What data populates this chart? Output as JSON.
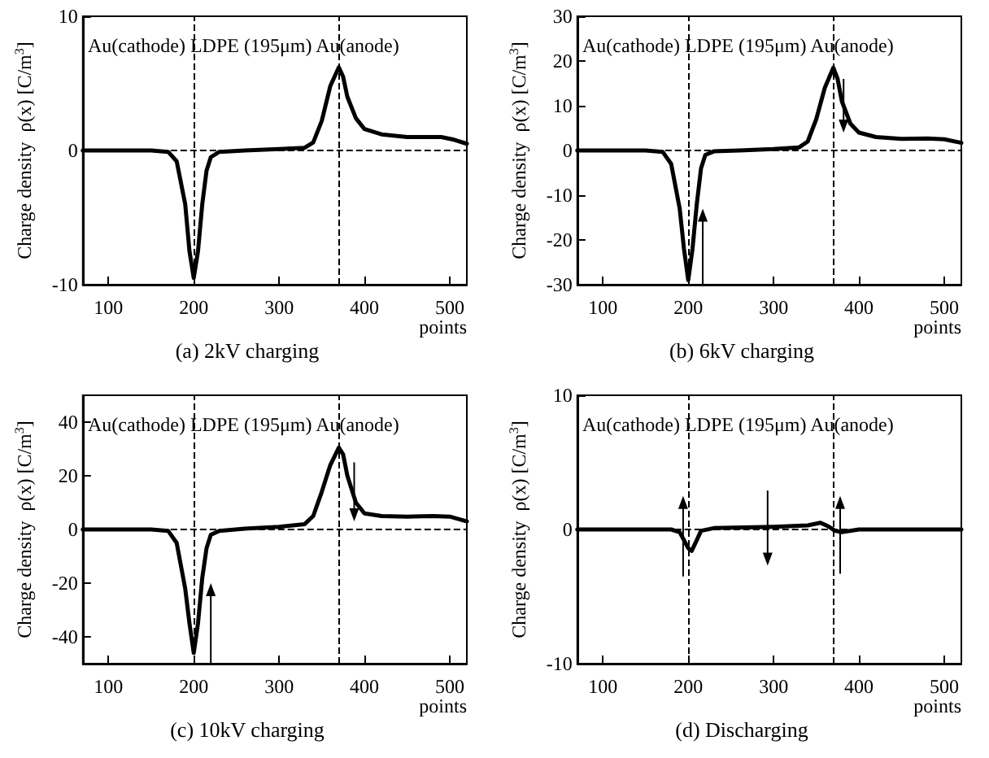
{
  "chart_data": [
    {
      "type": "line",
      "title": "(a) 2kV charging",
      "xlabel": "points",
      "ylabel": "Charge density  ρ(x) [C/m$^{3}$]",
      "annotations": [
        "Au(cathode) LDPE (195μm) Au(anode)"
      ],
      "xlim": [
        70,
        520
      ],
      "xticks": [
        100,
        200,
        300,
        400,
        500
      ],
      "ylim": [
        -10,
        10
      ],
      "yticks": [
        -10,
        0,
        10
      ],
      "marker": "none",
      "line_style": "solid",
      "grid": false,
      "legend": false,
      "ref_lines": [
        {
          "axis": "x",
          "value": 200,
          "color": "#000000",
          "line_style": "dashed"
        },
        {
          "axis": "x",
          "value": 370,
          "color": "#000000",
          "line_style": "dashed"
        },
        {
          "axis": "y",
          "value": 0,
          "color": "#000000",
          "line_style": "dashed"
        }
      ],
      "series": [
        {
          "color": "#000000",
          "x": [
            70,
            150,
            170,
            180,
            190,
            195,
            200,
            205,
            210,
            215,
            220,
            230,
            260,
            300,
            330,
            340,
            350,
            360,
            370,
            375,
            380,
            390,
            400,
            420,
            450,
            490,
            505,
            520
          ],
          "values": [
            0,
            0,
            -0.1,
            -0.8,
            -4,
            -7.5,
            -9.5,
            -7.5,
            -4,
            -1.5,
            -0.5,
            -0.1,
            0,
            0.1,
            0.2,
            0.6,
            2.2,
            4.8,
            6.2,
            5.5,
            4,
            2.4,
            1.6,
            1.2,
            1,
            1,
            0.8,
            0.5
          ]
        }
      ]
    },
    {
      "type": "line",
      "title": "(b) 6kV charging",
      "xlabel": "points",
      "ylabel": "Charge density  ρ(x) [C/m$^{3}$]",
      "annotations": [
        "Au(cathode) LDPE (195μm) Au(anode)"
      ],
      "xlim": [
        70,
        520
      ],
      "xticks": [
        100,
        200,
        300,
        400,
        500
      ],
      "ylim": [
        -30,
        30
      ],
      "yticks": [
        -30,
        -20,
        -10,
        0,
        10,
        20,
        30
      ],
      "marker": "none",
      "line_style": "solid",
      "grid": false,
      "legend": false,
      "ref_lines": [
        {
          "axis": "x",
          "value": 200,
          "color": "#000000",
          "line_style": "dashed"
        },
        {
          "axis": "x",
          "value": 370,
          "color": "#000000",
          "line_style": "dashed"
        },
        {
          "axis": "y",
          "value": 0,
          "color": "#000000",
          "line_style": "dashed"
        }
      ],
      "series": [
        {
          "color": "#000000",
          "x": [
            70,
            150,
            170,
            180,
            190,
            195,
            200,
            205,
            210,
            215,
            220,
            230,
            260,
            300,
            330,
            340,
            350,
            360,
            370,
            375,
            380,
            390,
            400,
            420,
            450,
            480,
            500,
            520
          ],
          "values": [
            0,
            0,
            -0.3,
            -3,
            -13,
            -22,
            -29,
            -22,
            -12,
            -4,
            -1,
            -0.2,
            0,
            0.3,
            0.7,
            2,
            7,
            14,
            18.5,
            16,
            11,
            6,
            4,
            3,
            2.6,
            2.7,
            2.5,
            1.7
          ]
        }
      ]
    },
    {
      "type": "line",
      "title": "(c) 10kV charging",
      "xlabel": "points",
      "ylabel": "Charge density  ρ(x) [C/m$^{3}$]",
      "annotations": [
        "Au(cathode) LDPE (195μm) Au(anode)"
      ],
      "xlim": [
        70,
        520
      ],
      "xticks": [
        100,
        200,
        300,
        400,
        500
      ],
      "ylim": [
        -50,
        50
      ],
      "yticks": [
        -40,
        -20,
        0,
        20,
        40
      ],
      "marker": "none",
      "line_style": "solid",
      "grid": false,
      "legend": false,
      "ref_lines": [
        {
          "axis": "x",
          "value": 200,
          "color": "#000000",
          "line_style": "dashed"
        },
        {
          "axis": "x",
          "value": 370,
          "color": "#000000",
          "line_style": "dashed"
        },
        {
          "axis": "y",
          "value": 0,
          "color": "#000000",
          "line_style": "dashed"
        }
      ],
      "series": [
        {
          "color": "#000000",
          "x": [
            70,
            150,
            170,
            180,
            190,
            195,
            200,
            205,
            210,
            215,
            220,
            230,
            260,
            300,
            330,
            340,
            350,
            360,
            370,
            375,
            380,
            390,
            400,
            420,
            450,
            480,
            500,
            520
          ],
          "values": [
            0,
            0,
            -0.5,
            -5,
            -22,
            -35,
            -46,
            -35,
            -18,
            -7,
            -2,
            -0.5,
            0.3,
            1,
            2,
            5,
            14,
            24,
            30.5,
            28,
            20,
            10,
            6,
            5,
            4.8,
            5,
            4.8,
            3
          ]
        }
      ]
    },
    {
      "type": "line",
      "title": "(d) Discharging",
      "xlabel": "points",
      "ylabel": "Charge density  ρ(x) [C/m$^{3}$]",
      "annotations": [
        "Au(cathode) LDPE (195μm) Au(anode)"
      ],
      "xlim": [
        70,
        520
      ],
      "xticks": [
        100,
        200,
        300,
        400,
        500
      ],
      "ylim": [
        -10,
        10
      ],
      "yticks": [
        -10,
        0,
        10
      ],
      "marker": "none",
      "line_style": "solid",
      "grid": false,
      "legend": false,
      "ref_lines": [
        {
          "axis": "x",
          "value": 200,
          "color": "#000000",
          "line_style": "dashed"
        },
        {
          "axis": "x",
          "value": 370,
          "color": "#000000",
          "line_style": "dashed"
        },
        {
          "axis": "y",
          "value": 0,
          "color": "#000000",
          "line_style": "dashed"
        }
      ],
      "series": [
        {
          "color": "#000000",
          "x": [
            70,
            180,
            190,
            195,
            200,
            204,
            210,
            215,
            230,
            300,
            340,
            355,
            365,
            372,
            380,
            400,
            450,
            520
          ],
          "values": [
            0,
            0,
            -0.2,
            -0.8,
            -1.4,
            -1.6,
            -0.8,
            -0.1,
            0.1,
            0.2,
            0.3,
            0.5,
            0.2,
            -0.1,
            -0.2,
            0,
            0,
            0
          ]
        }
      ]
    }
  ]
}
